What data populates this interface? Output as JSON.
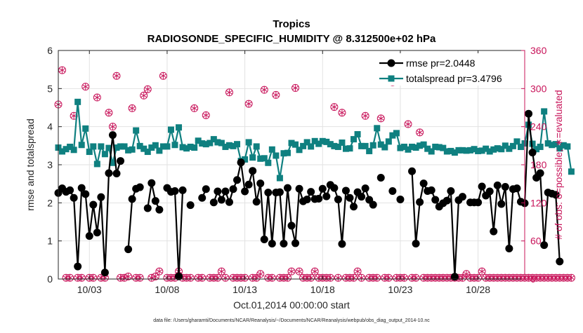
{
  "title_line1": "Tropics",
  "title_line2": "RADIOSONDE_SPECIFIC_HUMIDITY @ 8.312500e+02 hPa",
  "xlabel": "Oct.01,2014 00:00:00 start",
  "ylabel_left": "rmse and totalspread",
  "ylabel_right": "# of obs: o=possible; ∗=evaluated",
  "footer": "data file: /Users/gharamti/Documents/NCAR/Reanalysis/~/Documents/NCAR/Reanalysis/webpub/obs_diag_output_2014-10.nc",
  "colors": {
    "rmse": "#000000",
    "spread": "#0f8080",
    "obs": "#c8145a",
    "grid": "#e2e2e2"
  },
  "chart_data": {
    "type": "line",
    "x_start_day": 1,
    "x_step_days": 0.25,
    "xlim": [
      1,
      31
    ],
    "xticks": [
      3,
      8,
      13,
      18,
      23,
      28
    ],
    "xtick_labels": [
      "10/03",
      "10/08",
      "10/13",
      "10/18",
      "10/23",
      "10/28"
    ],
    "ylim_left": [
      0,
      6
    ],
    "yticks_left": [
      "0",
      "1",
      "2",
      "3",
      "4",
      "5",
      "6"
    ],
    "ylim_right": [
      0,
      360
    ],
    "yticks_right": [
      "0",
      "60",
      "120",
      "180",
      "240",
      "300",
      "360"
    ],
    "legend_position": "top-right",
    "series": [
      {
        "name": "rmse pr=2.0448",
        "axis": "left",
        "values": [
          2.26,
          2.38,
          2.29,
          2.33,
          2.13,
          0.33,
          2.39,
          2.23,
          1.13,
          1.95,
          1.22,
          2.15,
          0.17,
          2.78,
          3.78,
          2.77,
          3.1,
          null,
          0.78,
          2.1,
          2.37,
          2.41,
          null,
          1.86,
          2.52,
          2.05,
          1.82,
          null,
          2.39,
          2.29,
          2.31,
          0.07,
          2.33,
          null,
          1.94,
          null,
          null,
          2.13,
          2.36,
          null,
          2.01,
          2.3,
          2.08,
          2.3,
          2.02,
          2.36,
          2.6,
          3.06,
          2.3,
          2.48,
          2.84,
          2.03,
          2.51,
          1.04,
          2.27,
          0.93,
          2.27,
          2.28,
          0.93,
          2.39,
          1.4,
          0.94,
          2.37,
          2.04,
          2.09,
          2.29,
          2.1,
          2.11,
          2.37,
          2.17,
          2.47,
          2.39,
          2.09,
          0.92,
          2.32,
          2.13,
          1.9,
          2.28,
          2.16,
          2.38,
          2.08,
          1.95,
          null,
          2.66,
          null,
          null,
          2.31,
          null,
          2.09,
          null,
          null,
          2.83,
          0.93,
          2.02,
          2.51,
          2.31,
          2.33,
          2.08,
          1.9,
          1.99,
          2.06,
          2.31,
          0.06,
          2.07,
          2.16,
          null,
          2.01,
          2.01,
          2.01,
          2.43,
          2.19,
          2.3,
          1.25,
          2.46,
          1.97,
          2.42,
          0.8,
          2.36,
          2.38,
          2.03,
          1.99,
          4.34,
          3.32,
          2.66,
          2.78,
          0.89,
          2.27,
          2.24,
          2.21,
          0.46
        ]
      },
      {
        "name": "totalspread pr=3.4796",
        "axis": "left",
        "values": [
          3.45,
          3.35,
          3.41,
          3.47,
          3.39,
          4.65,
          3.52,
          3.95,
          3.34,
          3.48,
          3.02,
          3.48,
          3.28,
          3.44,
          3.05,
          3.45,
          3.48,
          3.48,
          3.38,
          3.4,
          3.9,
          3.49,
          3.42,
          3.34,
          3.45,
          3.51,
          3.37,
          3.48,
          3.48,
          3.92,
          3.52,
          3.98,
          3.46,
          3.43,
          3.47,
          3.45,
          3.63,
          3.56,
          3.54,
          3.57,
          3.67,
          3.59,
          3.57,
          3.47,
          3.51,
          3.49,
          3.54,
          3.1,
          3.14,
          3.59,
          3.19,
          3.48,
          3.16,
          3.17,
          3.05,
          3.4,
          3.24,
          2.65,
          3.3,
          3.31,
          3.57,
          3.53,
          3.39,
          3.49,
          3.59,
          3.48,
          3.62,
          3.55,
          3.62,
          3.6,
          3.54,
          3.49,
          3.47,
          3.58,
          3.42,
          3.43,
          3.67,
          3.8,
          3.49,
          3.49,
          3.36,
          3.51,
          3.96,
          3.53,
          3.46,
          3.61,
          3.77,
          3.83,
          3.44,
          3.47,
          3.4,
          3.47,
          3.45,
          3.5,
          3.53,
          3.42,
          3.35,
          3.47,
          3.46,
          3.44,
          3.35,
          3.36,
          3.32,
          3.38,
          3.38,
          3.37,
          3.38,
          3.41,
          3.36,
          3.37,
          3.42,
          3.35,
          3.4,
          3.43,
          3.41,
          3.5,
          3.42,
          3.49,
          3.61,
          3.47,
          3.56,
          4.05,
          3.55,
          3.41,
          3.47,
          4.4,
          3.56,
          3.52,
          3.54,
          3.43,
          3.51,
          3.48,
          2.82
        ]
      },
      {
        "name": "possible",
        "axis": "right",
        "values": [
          275,
          329,
          2,
          2,
          257,
          2,
          2,
          303,
          2,
          2,
          286,
          2,
          2,
          262,
          240,
          320,
          2,
          2,
          4,
          269,
          2,
          2,
          289,
          299,
          2,
          4,
          12,
          320,
          2,
          2,
          2,
          12,
          2,
          2,
          2,
          269,
          2,
          2,
          258,
          2,
          2,
          2,
          12,
          2,
          294,
          2,
          2,
          2,
          2,
          276,
          2,
          2,
          8,
          298,
          2,
          2,
          290,
          2,
          2,
          2,
          12,
          301,
          12,
          2,
          2,
          2,
          12,
          2,
          2,
          2,
          2,
          271,
          2,
          262,
          2,
          2,
          2,
          12,
          2,
          257,
          2,
          2,
          2,
          253,
          2,
          2,
          310,
          2,
          2,
          2,
          244,
          2,
          2,
          231,
          2,
          2,
          2,
          2,
          2,
          2,
          2,
          2,
          2,
          2,
          2,
          8,
          2,
          2,
          2,
          12,
          2,
          2,
          2,
          2,
          2,
          2,
          2,
          2,
          2,
          2,
          2,
          2,
          2,
          2,
          2,
          2,
          2,
          2,
          2,
          2,
          2,
          2,
          2
        ],
        "marker": "o"
      },
      {
        "name": "evaluated",
        "axis": "right",
        "values": [
          275,
          329,
          2,
          2,
          257,
          2,
          2,
          303,
          2,
          2,
          286,
          2,
          2,
          262,
          240,
          320,
          2,
          2,
          4,
          269,
          2,
          2,
          289,
          299,
          2,
          4,
          12,
          320,
          2,
          2,
          2,
          12,
          2,
          2,
          2,
          269,
          2,
          2,
          258,
          2,
          2,
          2,
          12,
          2,
          294,
          2,
          2,
          2,
          2,
          276,
          2,
          2,
          8,
          298,
          2,
          2,
          290,
          2,
          2,
          2,
          12,
          301,
          12,
          2,
          2,
          2,
          12,
          2,
          2,
          2,
          2,
          271,
          2,
          262,
          2,
          2,
          2,
          12,
          2,
          257,
          2,
          2,
          2,
          253,
          2,
          2,
          310,
          2,
          2,
          2,
          244,
          2,
          2,
          231,
          2,
          2,
          2,
          2,
          2,
          2,
          2,
          2,
          2,
          2,
          2,
          8,
          2,
          2,
          2,
          12,
          2,
          2,
          2,
          2,
          2,
          2,
          2,
          2,
          2,
          2,
          2,
          2,
          2,
          2,
          2,
          2,
          2,
          2,
          2,
          2,
          2,
          2,
          2
        ],
        "marker": "*"
      }
    ]
  }
}
